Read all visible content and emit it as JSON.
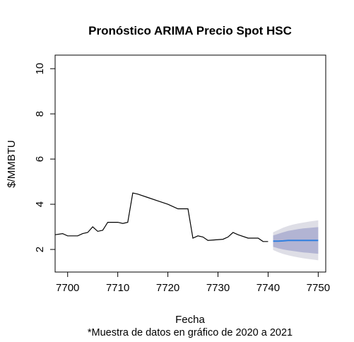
{
  "chart_data": {
    "type": "line",
    "title": "Pronóstico ARIMA Precio Spot HSC",
    "xlabel": "Fecha",
    "ylabel": "$/MMBTU",
    "note": "*Muestra de datos en gráfico de 2020 a 2021",
    "xlim": [
      7697.5,
      7751.5
    ],
    "ylim": [
      1,
      10.6
    ],
    "x_ticks": [
      7700,
      7710,
      7720,
      7730,
      7740,
      7750
    ],
    "y_ticks": [
      2,
      4,
      6,
      8,
      10
    ],
    "grid": false,
    "legend": "none",
    "colors": {
      "history": "#000000",
      "forecast": "#2f7fe0",
      "band_80": "#b2b4d3",
      "band_95": "#dedee6"
    },
    "series": [
      {
        "type": "history",
        "points": [
          [
            7697.5,
            2.65
          ],
          [
            7699,
            2.7
          ],
          [
            7700,
            2.6
          ],
          [
            7702,
            2.6
          ],
          [
            7703,
            2.7
          ],
          [
            7704,
            2.75
          ],
          [
            7705,
            3.0
          ],
          [
            7706,
            2.8
          ],
          [
            7707,
            2.85
          ],
          [
            7708,
            3.2
          ],
          [
            7710,
            3.2
          ],
          [
            7711,
            3.15
          ],
          [
            7712,
            3.2
          ],
          [
            7713,
            4.5
          ],
          [
            7714,
            4.45
          ],
          [
            7716,
            4.3
          ],
          [
            7718,
            4.15
          ],
          [
            7720,
            4.0
          ],
          [
            7722,
            3.8
          ],
          [
            7724,
            3.8
          ],
          [
            7725,
            2.5
          ],
          [
            7726,
            2.6
          ],
          [
            7727,
            2.55
          ],
          [
            7728,
            2.4
          ],
          [
            7731,
            2.45
          ],
          [
            7732,
            2.55
          ],
          [
            7733,
            2.75
          ],
          [
            7734,
            2.65
          ],
          [
            7736,
            2.5
          ],
          [
            7738,
            2.5
          ],
          [
            7739,
            2.35
          ],
          [
            7740,
            2.35
          ]
        ]
      },
      {
        "type": "forecast",
        "points": [
          [
            7741,
            2.37
          ],
          [
            7742,
            2.37
          ],
          [
            7743,
            2.38
          ],
          [
            7744,
            2.4
          ],
          [
            7745,
            2.4
          ],
          [
            7746,
            2.4
          ],
          [
            7747,
            2.4
          ],
          [
            7748,
            2.4
          ],
          [
            7749,
            2.4
          ],
          [
            7750,
            2.4
          ]
        ],
        "lower80": [
          2.12,
          2.05,
          2.0,
          1.96,
          1.93,
          1.9,
          1.87,
          1.85,
          1.83,
          1.81
        ],
        "upper80": [
          2.62,
          2.69,
          2.76,
          2.82,
          2.86,
          2.9,
          2.93,
          2.95,
          2.97,
          2.99
        ],
        "lower95": [
          1.98,
          1.88,
          1.8,
          1.74,
          1.69,
          1.65,
          1.61,
          1.58,
          1.55,
          1.52
        ],
        "upper95": [
          2.76,
          2.86,
          2.96,
          3.04,
          3.1,
          3.15,
          3.19,
          3.23,
          3.26,
          3.29
        ]
      }
    ]
  }
}
